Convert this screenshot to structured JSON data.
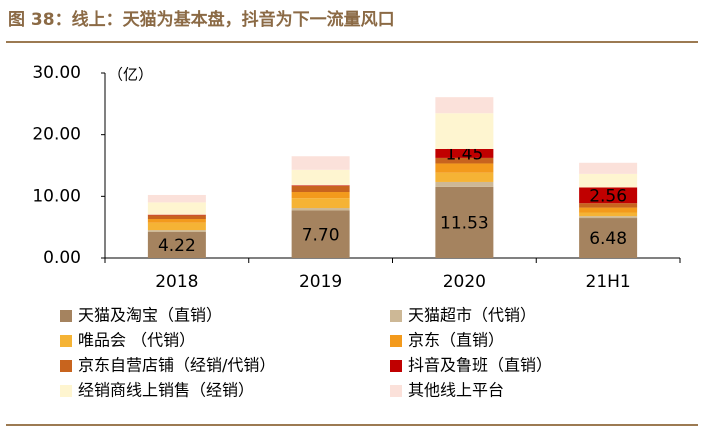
{
  "chart_data": {
    "type": "bar",
    "stacked": true,
    "title": "图 38：线上：天猫为基本盘，抖音为下一流量风口",
    "y_label": "（亿）",
    "categories": [
      "2018",
      "2019",
      "2020",
      "21H1"
    ],
    "ylim": [
      0,
      30
    ],
    "yticks": [
      {
        "value": 0,
        "label": "0.00"
      },
      {
        "value": 10,
        "label": "10.00"
      },
      {
        "value": 20,
        "label": "20.00"
      },
      {
        "value": 30,
        "label": "30.00"
      }
    ],
    "grid": false,
    "series": [
      {
        "name": "天猫及淘宝（直销）",
        "color": "#a5835f",
        "values": [
          4.22,
          7.7,
          11.53,
          6.48
        ],
        "value_labels": [
          "4.22",
          "7.70",
          "11.53",
          "6.48"
        ]
      },
      {
        "name": "天猫超市（代销）",
        "color": "#cdb896",
        "values": [
          0.3,
          0.4,
          0.8,
          0.3
        ]
      },
      {
        "name": "唯品会 （代销）",
        "color": "#f5b335",
        "values": [
          1.2,
          1.6,
          1.5,
          0.6
        ]
      },
      {
        "name": "京东（直销）",
        "color": "#f39a1c",
        "values": [
          0.6,
          1.0,
          1.5,
          0.8
        ]
      },
      {
        "name": "京东自营店铺（经销/代销）",
        "color": "#c8641e",
        "values": [
          0.6,
          1.0,
          0.9,
          0.7
        ]
      },
      {
        "name": "抖音及鲁班（直销）",
        "color": "#c00000",
        "values": [
          0.1,
          0.1,
          1.45,
          2.56
        ],
        "value_labels": [
          null,
          null,
          "1.45",
          "2.56"
        ]
      },
      {
        "name": "经销商线上销售（经销）",
        "color": "#fef5d0",
        "values": [
          2.0,
          2.5,
          5.8,
          2.2
        ]
      },
      {
        "name": "其他线上平台",
        "color": "#fbe1da",
        "values": [
          1.2,
          2.2,
          2.6,
          1.8
        ]
      }
    ]
  }
}
